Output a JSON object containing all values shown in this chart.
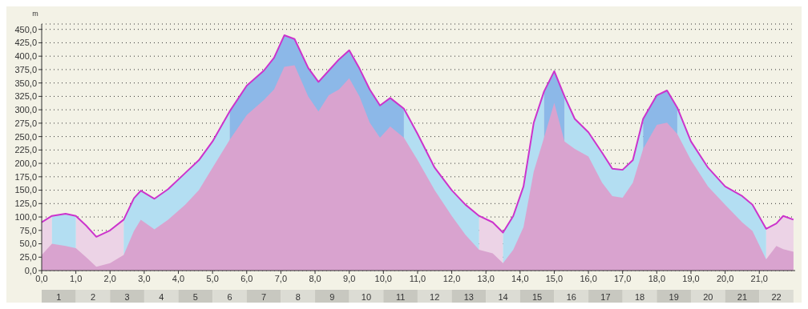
{
  "chart_data": {
    "type": "area",
    "ylabel": "m",
    "x": [
      0,
      0.3,
      0.7,
      1.0,
      1.3,
      1.6,
      2.0,
      2.4,
      2.7,
      2.9,
      3.3,
      3.7,
      4.2,
      4.6,
      5.0,
      5.5,
      6.0,
      6.5,
      6.8,
      7.1,
      7.4,
      7.8,
      8.1,
      8.4,
      8.7,
      9.0,
      9.3,
      9.6,
      9.9,
      10.2,
      10.6,
      11.0,
      11.5,
      12.0,
      12.4,
      12.8,
      13.2,
      13.5,
      13.8,
      14.1,
      14.4,
      14.7,
      15.0,
      15.3,
      15.6,
      16.0,
      16.4,
      16.7,
      17.0,
      17.3,
      17.6,
      18.0,
      18.3,
      18.6,
      19.0,
      19.5,
      20.0,
      20.5,
      20.8,
      21.2,
      21.5,
      21.7,
      22.0
    ],
    "series": [
      {
        "color": "#ecd3e6",
        "values": [
          90,
          102,
          null,
          102,
          84,
          63,
          75,
          95,
          null,
          null,
          null,
          null,
          null,
          null,
          null,
          null,
          null,
          null,
          null,
          null,
          null,
          null,
          null,
          null,
          null,
          null,
          null,
          null,
          null,
          null,
          null,
          null,
          null,
          null,
          null,
          102,
          90,
          71,
          null,
          null,
          null,
          null,
          null,
          null,
          null,
          null,
          null,
          null,
          null,
          null,
          null,
          null,
          null,
          null,
          null,
          null,
          null,
          null,
          null,
          78,
          88,
          102,
          95
        ]
      },
      {
        "color": "#b3def2",
        "values": [
          null,
          102,
          106,
          102,
          null,
          null,
          null,
          95,
          135,
          149,
          134,
          152,
          182,
          206,
          241,
          297,
          null,
          null,
          null,
          null,
          null,
          null,
          null,
          null,
          null,
          null,
          null,
          null,
          null,
          null,
          302,
          255,
          192,
          150,
          123,
          102,
          null,
          71,
          102,
          157,
          276,
          334,
          null,
          325,
          283,
          258,
          220,
          190,
          188,
          206,
          283,
          null,
          null,
          304,
          241,
          192,
          157,
          139,
          123,
          78,
          null,
          null,
          null
        ]
      },
      {
        "color": "#8cb8e8",
        "values": [
          null,
          null,
          null,
          null,
          null,
          null,
          null,
          null,
          null,
          null,
          null,
          null,
          null,
          null,
          null,
          297,
          345,
          373,
          397,
          439,
          432,
          378,
          352,
          373,
          394,
          411,
          377,
          338,
          308,
          322,
          302,
          null,
          null,
          null,
          null,
          null,
          null,
          null,
          null,
          null,
          null,
          334,
          372,
          325,
          null,
          null,
          null,
          null,
          null,
          null,
          283,
          327,
          336,
          304,
          null,
          null,
          null,
          null,
          null,
          null,
          null,
          null,
          null
        ]
      },
      {
        "color": "#d9a3cf",
        "values": [
          29,
          50,
          46,
          42,
          25,
          7,
          14,
          29,
          74,
          95,
          77,
          95,
          123,
          150,
          192,
          244,
          290,
          318,
          338,
          380,
          383,
          325,
          297,
          327,
          338,
          359,
          325,
          276,
          248,
          269,
          248,
          206,
          150,
          102,
          67,
          39,
          32,
          14,
          39,
          81,
          185,
          248,
          313,
          241,
          227,
          213,
          164,
          139,
          136,
          164,
          227,
          272,
          276,
          255,
          206,
          157,
          123,
          90,
          74,
          21,
          46,
          40,
          35
        ]
      },
      {
        "type": "line",
        "color": "#cc33cc",
        "values": [
          90,
          102,
          106,
          102,
          84,
          63,
          75,
          95,
          135,
          149,
          134,
          152,
          182,
          206,
          241,
          297,
          345,
          373,
          397,
          439,
          432,
          378,
          352,
          373,
          394,
          411,
          377,
          338,
          308,
          322,
          302,
          255,
          192,
          150,
          123,
          102,
          90,
          71,
          102,
          157,
          276,
          334,
          372,
          325,
          283,
          258,
          220,
          190,
          188,
          206,
          283,
          327,
          336,
          304,
          241,
          192,
          157,
          139,
          123,
          78,
          88,
          102,
          95
        ]
      }
    ],
    "xlim": [
      0,
      22.05
    ],
    "xticks": [
      {
        "value": 0,
        "label": "0,0"
      },
      {
        "value": 1,
        "label": "1,0"
      },
      {
        "value": 2,
        "label": "2,0"
      },
      {
        "value": 3,
        "label": "3,0"
      },
      {
        "value": 4,
        "label": "4,0"
      },
      {
        "value": 5,
        "label": "5,0"
      },
      {
        "value": 6,
        "label": "6,0"
      },
      {
        "value": 7,
        "label": "7,0"
      },
      {
        "value": 8,
        "label": "8,0"
      },
      {
        "value": 9,
        "label": "9,0"
      },
      {
        "value": 10,
        "label": "10,0"
      },
      {
        "value": 11,
        "label": "11,0"
      },
      {
        "value": 12,
        "label": "12,0"
      },
      {
        "value": 13,
        "label": "13,0"
      },
      {
        "value": 14,
        "label": "14,0"
      },
      {
        "value": 15,
        "label": "15,0"
      },
      {
        "value": 16,
        "label": "16,0"
      },
      {
        "value": 17,
        "label": "17,0"
      },
      {
        "value": 18,
        "label": "18,0"
      },
      {
        "value": 19,
        "label": "19,0"
      },
      {
        "value": 20,
        "label": "20,0"
      },
      {
        "value": 21,
        "label": "21,0"
      }
    ],
    "x2lim": [
      0,
      22.05
    ],
    "x2ticks": [
      {
        "value": 0.5,
        "label": "1"
      },
      {
        "value": 1.5,
        "label": "2"
      },
      {
        "value": 2.5,
        "label": "3"
      },
      {
        "value": 3.5,
        "label": "4"
      },
      {
        "value": 4.5,
        "label": "5"
      },
      {
        "value": 5.5,
        "label": "6"
      },
      {
        "value": 6.5,
        "label": "7"
      },
      {
        "value": 7.5,
        "label": "8"
      },
      {
        "value": 8.5,
        "label": "9"
      },
      {
        "value": 9.5,
        "label": "10"
      },
      {
        "value": 10.5,
        "label": "11"
      },
      {
        "value": 11.5,
        "label": "12"
      },
      {
        "value": 12.5,
        "label": "13"
      },
      {
        "value": 13.5,
        "label": "14"
      },
      {
        "value": 14.5,
        "label": "15"
      },
      {
        "value": 15.5,
        "label": "16"
      },
      {
        "value": 16.5,
        "label": "17"
      },
      {
        "value": 17.5,
        "label": "18"
      },
      {
        "value": 18.5,
        "label": "19"
      },
      {
        "value": 19.5,
        "label": "20"
      },
      {
        "value": 20.5,
        "label": "21"
      },
      {
        "value": 21.5,
        "label": "22"
      }
    ],
    "ylim": [
      0,
      460
    ],
    "yticks": [
      {
        "value": 0,
        "label": "0,0"
      },
      {
        "value": 25,
        "label": "25,0"
      },
      {
        "value": 50,
        "label": "50,0"
      },
      {
        "value": 75,
        "label": "75,0"
      },
      {
        "value": 100,
        "label": "100,0"
      },
      {
        "value": 125,
        "label": "125,0"
      },
      {
        "value": 150,
        "label": "150,0"
      },
      {
        "value": 175,
        "label": "175,0"
      },
      {
        "value": 200,
        "label": "200,0"
      },
      {
        "value": 225,
        "label": "225,0"
      },
      {
        "value": 250,
        "label": "250,0"
      },
      {
        "value": 275,
        "label": "275,0"
      },
      {
        "value": 300,
        "label": "300,0"
      },
      {
        "value": 325,
        "label": "325,0"
      },
      {
        "value": 350,
        "label": "350,0"
      },
      {
        "value": 375,
        "label": "375,0"
      },
      {
        "value": 400,
        "label": "400,0"
      },
      {
        "value": 425,
        "label": "425,0"
      },
      {
        "value": 450,
        "label": "450,0"
      }
    ],
    "grid": "y",
    "marker": "none",
    "line_style": "solid"
  }
}
